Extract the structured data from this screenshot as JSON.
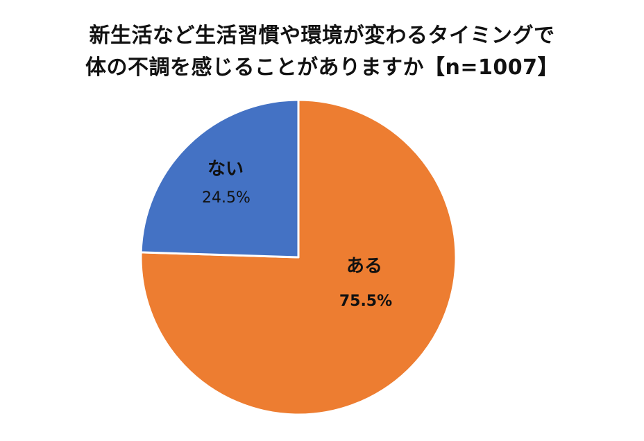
{
  "chart_data": {
    "type": "pie",
    "title_lines": [
      "新生活など生活習慣や環境が変わるタイミングで",
      "体の不調を感じることがありますか【n=1007】"
    ],
    "categories": [
      "ある",
      "ない"
    ],
    "values": [
      75.5,
      24.5
    ],
    "value_labels": [
      "75.5%",
      "24.5%"
    ],
    "colors": [
      "#ED7D31",
      "#4472C4"
    ],
    "start_angle_deg": 0,
    "direction": "clockwise",
    "legend": "none"
  }
}
